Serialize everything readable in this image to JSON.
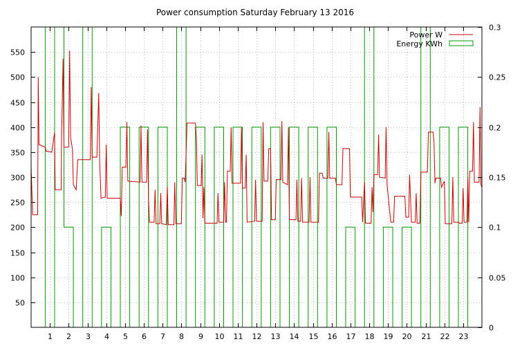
{
  "chart_data": {
    "type": "line",
    "title": "Power consumption Saturday February 13 2016",
    "xlabel": "",
    "ylabel": "",
    "xlim": [
      0,
      24
    ],
    "ylim": [
      0,
      600
    ],
    "y2lim": [
      0,
      0.3
    ],
    "x_ticks": [
      1,
      2,
      3,
      4,
      5,
      6,
      7,
      8,
      9,
      10,
      11,
      12,
      13,
      14,
      15,
      16,
      17,
      18,
      19,
      20,
      21,
      22,
      23
    ],
    "y_ticks": [
      50,
      100,
      150,
      200,
      250,
      300,
      350,
      400,
      450,
      500,
      550
    ],
    "y2_ticks": [
      0,
      0.05,
      0.1,
      0.15,
      0.2,
      0.25,
      0.3
    ],
    "y2_tick_labels": [
      "0",
      "0.05",
      "0.1",
      "0.15",
      "0.2",
      "0.25",
      "0.3"
    ],
    "grid": true,
    "legend_position": "top-right",
    "colors": {
      "power": "#cc0000",
      "energy": "#009900",
      "grid": "#888888",
      "axis": "#000000"
    },
    "series": [
      {
        "name": "Power W",
        "axis": "left",
        "style": "line",
        "points": [
          [
            0.0,
            320
          ],
          [
            0.08,
            225
          ],
          [
            0.35,
            225
          ],
          [
            0.38,
            500
          ],
          [
            0.42,
            365
          ],
          [
            0.75,
            360
          ],
          [
            0.8,
            352
          ],
          [
            1.1,
            350
          ],
          [
            1.25,
            390
          ],
          [
            1.28,
            275
          ],
          [
            1.6,
            275
          ],
          [
            1.62,
            375
          ],
          [
            1.7,
            537
          ],
          [
            1.75,
            360
          ],
          [
            2.0,
            360
          ],
          [
            2.05,
            553
          ],
          [
            2.1,
            380
          ],
          [
            2.2,
            355
          ],
          [
            2.25,
            285
          ],
          [
            2.4,
            275
          ],
          [
            2.48,
            335
          ],
          [
            3.15,
            335
          ],
          [
            3.2,
            480
          ],
          [
            3.25,
            340
          ],
          [
            3.5,
            340
          ],
          [
            3.6,
            468
          ],
          [
            3.65,
            330
          ],
          [
            3.72,
            258
          ],
          [
            3.95,
            260
          ],
          [
            4.0,
            365
          ],
          [
            4.05,
            258
          ],
          [
            4.75,
            258
          ],
          [
            4.8,
            222
          ],
          [
            4.85,
            320
          ],
          [
            5.05,
            320
          ],
          [
            5.1,
            410
          ],
          [
            5.15,
            292
          ],
          [
            5.8,
            290
          ],
          [
            5.85,
            403
          ],
          [
            5.9,
            290
          ],
          [
            6.15,
            290
          ],
          [
            6.2,
            395
          ],
          [
            6.25,
            258
          ],
          [
            6.3,
            210
          ],
          [
            6.55,
            210
          ],
          [
            6.6,
            275
          ],
          [
            6.65,
            207
          ],
          [
            6.85,
            207
          ],
          [
            6.9,
            268
          ],
          [
            6.95,
            207
          ],
          [
            7.2,
            205
          ],
          [
            7.25,
            282
          ],
          [
            7.3,
            205
          ],
          [
            7.6,
            205
          ],
          [
            7.65,
            290
          ],
          [
            7.7,
            207
          ],
          [
            8.0,
            207
          ],
          [
            8.05,
            298
          ],
          [
            8.15,
            298
          ],
          [
            8.2,
            290
          ],
          [
            8.3,
            408
          ],
          [
            8.75,
            408
          ],
          [
            8.8,
            375
          ],
          [
            8.85,
            283
          ],
          [
            9.05,
            283
          ],
          [
            9.1,
            345
          ],
          [
            9.15,
            218
          ],
          [
            9.2,
            280
          ],
          [
            9.25,
            208
          ],
          [
            9.9,
            208
          ],
          [
            9.95,
            268
          ],
          [
            10.0,
            210
          ],
          [
            10.25,
            210
          ],
          [
            10.3,
            290
          ],
          [
            10.35,
            210
          ],
          [
            10.4,
            210
          ],
          [
            10.45,
            312
          ],
          [
            10.6,
            312
          ],
          [
            10.65,
            400
          ],
          [
            10.7,
            288
          ],
          [
            11.15,
            288
          ],
          [
            11.2,
            400
          ],
          [
            11.25,
            278
          ],
          [
            11.4,
            278
          ],
          [
            11.45,
            345
          ],
          [
            11.5,
            210
          ],
          [
            11.9,
            212
          ],
          [
            11.95,
            295
          ],
          [
            12.0,
            212
          ],
          [
            12.3,
            212
          ],
          [
            12.35,
            410
          ],
          [
            12.4,
            292
          ],
          [
            12.6,
            292
          ],
          [
            12.65,
            357
          ],
          [
            12.75,
            357
          ],
          [
            12.8,
            215
          ],
          [
            13.0,
            215
          ],
          [
            13.05,
            295
          ],
          [
            13.3,
            295
          ],
          [
            13.35,
            412
          ],
          [
            13.4,
            290
          ],
          [
            13.65,
            285
          ],
          [
            13.7,
            400
          ],
          [
            13.75,
            215
          ],
          [
            14.1,
            215
          ],
          [
            14.15,
            295
          ],
          [
            14.2,
            212
          ],
          [
            14.35,
            212
          ],
          [
            14.4,
            298
          ],
          [
            14.45,
            210
          ],
          [
            14.8,
            210
          ],
          [
            14.85,
            300
          ],
          [
            14.9,
            210
          ],
          [
            15.3,
            210
          ],
          [
            15.35,
            308
          ],
          [
            15.5,
            308
          ],
          [
            15.55,
            298
          ],
          [
            15.8,
            298
          ],
          [
            15.85,
            390
          ],
          [
            15.9,
            298
          ],
          [
            16.2,
            298
          ],
          [
            16.25,
            285
          ],
          [
            16.55,
            285
          ],
          [
            16.6,
            357
          ],
          [
            16.95,
            357
          ],
          [
            17.0,
            260
          ],
          [
            17.6,
            260
          ],
          [
            17.65,
            210
          ],
          [
            17.75,
            290
          ],
          [
            17.8,
            208
          ],
          [
            18.1,
            208
          ],
          [
            18.15,
            280
          ],
          [
            18.2,
            230
          ],
          [
            18.25,
            305
          ],
          [
            18.45,
            305
          ],
          [
            18.5,
            385
          ],
          [
            18.55,
            300
          ],
          [
            18.85,
            298
          ],
          [
            18.9,
            400
          ],
          [
            18.95,
            285
          ],
          [
            19.15,
            210
          ],
          [
            19.3,
            210
          ],
          [
            19.35,
            262
          ],
          [
            19.9,
            262
          ],
          [
            19.95,
            220
          ],
          [
            20.1,
            220
          ],
          [
            20.15,
            305
          ],
          [
            20.25,
            210
          ],
          [
            20.45,
            210
          ],
          [
            20.5,
            268
          ],
          [
            20.55,
            208
          ],
          [
            20.7,
            208
          ],
          [
            20.75,
            310
          ],
          [
            21.1,
            310
          ],
          [
            21.15,
            390
          ],
          [
            21.4,
            390
          ],
          [
            21.45,
            370
          ],
          [
            21.5,
            288
          ],
          [
            21.55,
            298
          ],
          [
            21.8,
            298
          ],
          [
            21.85,
            280
          ],
          [
            22.0,
            292
          ],
          [
            22.05,
            207
          ],
          [
            22.4,
            207
          ],
          [
            22.45,
            300
          ],
          [
            22.5,
            210
          ],
          [
            22.75,
            210
          ],
          [
            22.8,
            208
          ],
          [
            22.95,
            208
          ],
          [
            23.0,
            278
          ],
          [
            23.05,
            210
          ],
          [
            23.2,
            210
          ],
          [
            23.25,
            298
          ],
          [
            23.3,
            210
          ],
          [
            23.35,
            312
          ],
          [
            23.5,
            312
          ],
          [
            23.55,
            410
          ],
          [
            23.6,
            290
          ],
          [
            23.85,
            290
          ],
          [
            23.9,
            440
          ],
          [
            23.95,
            285
          ],
          [
            24.0,
            280
          ]
        ]
      },
      {
        "name": "Energy KWh",
        "axis": "right",
        "style": "steps",
        "points": [
          [
            0.0,
            0.3
          ],
          [
            0.75,
            0.3
          ],
          [
            0.75,
            0.0
          ],
          [
            1.25,
            0.0
          ],
          [
            1.25,
            0.3
          ],
          [
            1.75,
            0.3
          ],
          [
            1.75,
            0.1
          ],
          [
            2.25,
            0.1
          ],
          [
            2.25,
            0.0
          ],
          [
            2.75,
            0.0
          ],
          [
            2.75,
            0.3
          ],
          [
            3.25,
            0.3
          ],
          [
            3.25,
            0.0
          ],
          [
            3.75,
            0.0
          ],
          [
            3.75,
            0.1
          ],
          [
            4.25,
            0.1
          ],
          [
            4.25,
            0.0
          ],
          [
            4.75,
            0.0
          ],
          [
            4.75,
            0.2
          ],
          [
            5.25,
            0.2
          ],
          [
            5.25,
            0.0
          ],
          [
            5.75,
            0.0
          ],
          [
            5.75,
            0.2
          ],
          [
            6.25,
            0.2
          ],
          [
            6.25,
            0.0
          ],
          [
            6.75,
            0.0
          ],
          [
            6.75,
            0.2
          ],
          [
            7.25,
            0.2
          ],
          [
            7.25,
            0.0
          ],
          [
            7.75,
            0.0
          ],
          [
            7.75,
            0.3
          ],
          [
            8.25,
            0.3
          ],
          [
            8.25,
            0.0
          ],
          [
            8.75,
            0.0
          ],
          [
            8.75,
            0.2
          ],
          [
            9.25,
            0.2
          ],
          [
            9.25,
            0.0
          ],
          [
            9.75,
            0.0
          ],
          [
            9.75,
            0.2
          ],
          [
            10.25,
            0.2
          ],
          [
            10.25,
            0.0
          ],
          [
            10.75,
            0.0
          ],
          [
            10.75,
            0.2
          ],
          [
            11.25,
            0.2
          ],
          [
            11.25,
            0.0
          ],
          [
            11.75,
            0.0
          ],
          [
            11.75,
            0.2
          ],
          [
            12.25,
            0.2
          ],
          [
            12.25,
            0.0
          ],
          [
            12.75,
            0.0
          ],
          [
            12.75,
            0.2
          ],
          [
            13.25,
            0.2
          ],
          [
            13.25,
            0.0
          ],
          [
            13.75,
            0.0
          ],
          [
            13.75,
            0.2
          ],
          [
            14.25,
            0.2
          ],
          [
            14.25,
            0.0
          ],
          [
            14.75,
            0.0
          ],
          [
            14.75,
            0.2
          ],
          [
            15.25,
            0.2
          ],
          [
            15.25,
            0.0
          ],
          [
            15.75,
            0.0
          ],
          [
            15.75,
            0.2
          ],
          [
            16.25,
            0.2
          ],
          [
            16.25,
            0.0
          ],
          [
            16.75,
            0.0
          ],
          [
            16.75,
            0.1
          ],
          [
            17.25,
            0.1
          ],
          [
            17.25,
            0.0
          ],
          [
            17.75,
            0.0
          ],
          [
            17.75,
            0.3
          ],
          [
            18.25,
            0.3
          ],
          [
            18.25,
            0.0
          ],
          [
            18.75,
            0.0
          ],
          [
            18.75,
            0.1
          ],
          [
            19.25,
            0.1
          ],
          [
            19.25,
            0.0
          ],
          [
            19.75,
            0.0
          ],
          [
            19.75,
            0.1
          ],
          [
            20.25,
            0.1
          ],
          [
            20.25,
            0.0
          ],
          [
            20.75,
            0.0
          ],
          [
            20.75,
            0.3
          ],
          [
            21.25,
            0.3
          ],
          [
            21.25,
            0.0
          ],
          [
            21.75,
            0.0
          ],
          [
            21.75,
            0.2
          ],
          [
            22.25,
            0.2
          ],
          [
            22.25,
            0.0
          ],
          [
            22.75,
            0.0
          ],
          [
            22.75,
            0.2
          ],
          [
            23.25,
            0.2
          ],
          [
            23.25,
            0.0
          ],
          [
            24.0,
            0.0
          ]
        ]
      }
    ]
  }
}
